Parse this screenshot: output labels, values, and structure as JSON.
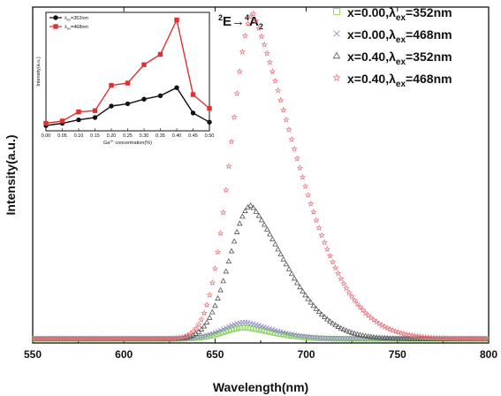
{
  "chart_data": [
    {
      "type": "scatter",
      "xlabel": "Wavelength(nm)",
      "ylabel": "Intensity(a.u.)",
      "xlim": [
        550,
        800
      ],
      "ylim": [
        0,
        1.0
      ],
      "xticks": [
        "550",
        "600",
        "650",
        "700",
        "750",
        "800"
      ],
      "show_y_ticks": false,
      "annotation": {
        "base": "E",
        "pre_sup1": "2",
        "pre_sup2": "4",
        "arrow": "→",
        "target": "A",
        "target_sub": "2"
      },
      "legend_position": "top-right",
      "series": [
        {
          "name": "x=0.00,λex=352nm",
          "prefix": "x=0.00,",
          "lambda": "λ",
          "sub": "ex",
          "suffix": "=352nm",
          "marker": "square",
          "color": "#7fd44f",
          "peak_x": 667,
          "peak_y": 0.046,
          "sigma_left": 12,
          "sigma_right": 15,
          "baseline": 0.012
        },
        {
          "name": "x=0.00,λex=468nm",
          "prefix": "x=0.00,",
          "lambda": "λ",
          "sub": "ex",
          "suffix": "=468nm",
          "marker": "cross",
          "color": "#8a86c0",
          "peak_x": 667,
          "peak_y": 0.062,
          "sigma_left": 12,
          "sigma_right": 15,
          "baseline": 0.013
        },
        {
          "name": "x=0.40,λex=352nm",
          "prefix": "x=0.40,",
          "lambda": "λ",
          "sub": "ex",
          "suffix": "=352nm",
          "marker": "triangle",
          "color": "#555555",
          "peak_x": 670,
          "peak_y": 0.41,
          "sigma_left": 12,
          "sigma_right": 20,
          "baseline": 0.012
        },
        {
          "name": "x=0.40,λex=468nm",
          "prefix": "x=0.40,",
          "lambda": "λ",
          "sub": "ex",
          "suffix": "=468nm",
          "marker": "star",
          "color": "#e8707a",
          "peak_x": 671,
          "peak_y": 0.98,
          "sigma_left": 12,
          "sigma_right": 25,
          "baseline": 0.012
        }
      ]
    },
    {
      "type": "line",
      "role": "inset",
      "xlabel_base": "Ga",
      "xlabel_sup": "3+",
      "xlabel_rest": " concentration(%)",
      "ylabel": "Intensity(a.u.)",
      "x": [
        0.0,
        0.05,
        0.1,
        0.15,
        0.2,
        0.25,
        0.3,
        0.35,
        0.4,
        0.45,
        0.5
      ],
      "xticks": [
        "0.00",
        "0.05",
        "0.10",
        "0.15",
        "0.20",
        "0.25",
        "0.30",
        "0.35",
        "0.40",
        "0.45",
        "0.50"
      ],
      "xlim": [
        0,
        0.5
      ],
      "ylim": [
        0,
        1.0
      ],
      "legend_position": "top-left",
      "series": [
        {
          "name": "λex=352nm",
          "lambda": "λ",
          "sub": "ex",
          "suffix": "=352nm",
          "color": "#111111",
          "marker": "circle",
          "values": [
            0.03,
            0.05,
            0.08,
            0.1,
            0.2,
            0.22,
            0.26,
            0.29,
            0.36,
            0.14,
            0.06
          ]
        },
        {
          "name": "λex=468nm",
          "lambda": "λ",
          "sub": "ex",
          "suffix": "=468nm",
          "color": "#e03030",
          "marker": "square",
          "values": [
            0.05,
            0.07,
            0.15,
            0.16,
            0.38,
            0.4,
            0.56,
            0.65,
            0.95,
            0.3,
            0.18
          ]
        }
      ]
    }
  ]
}
